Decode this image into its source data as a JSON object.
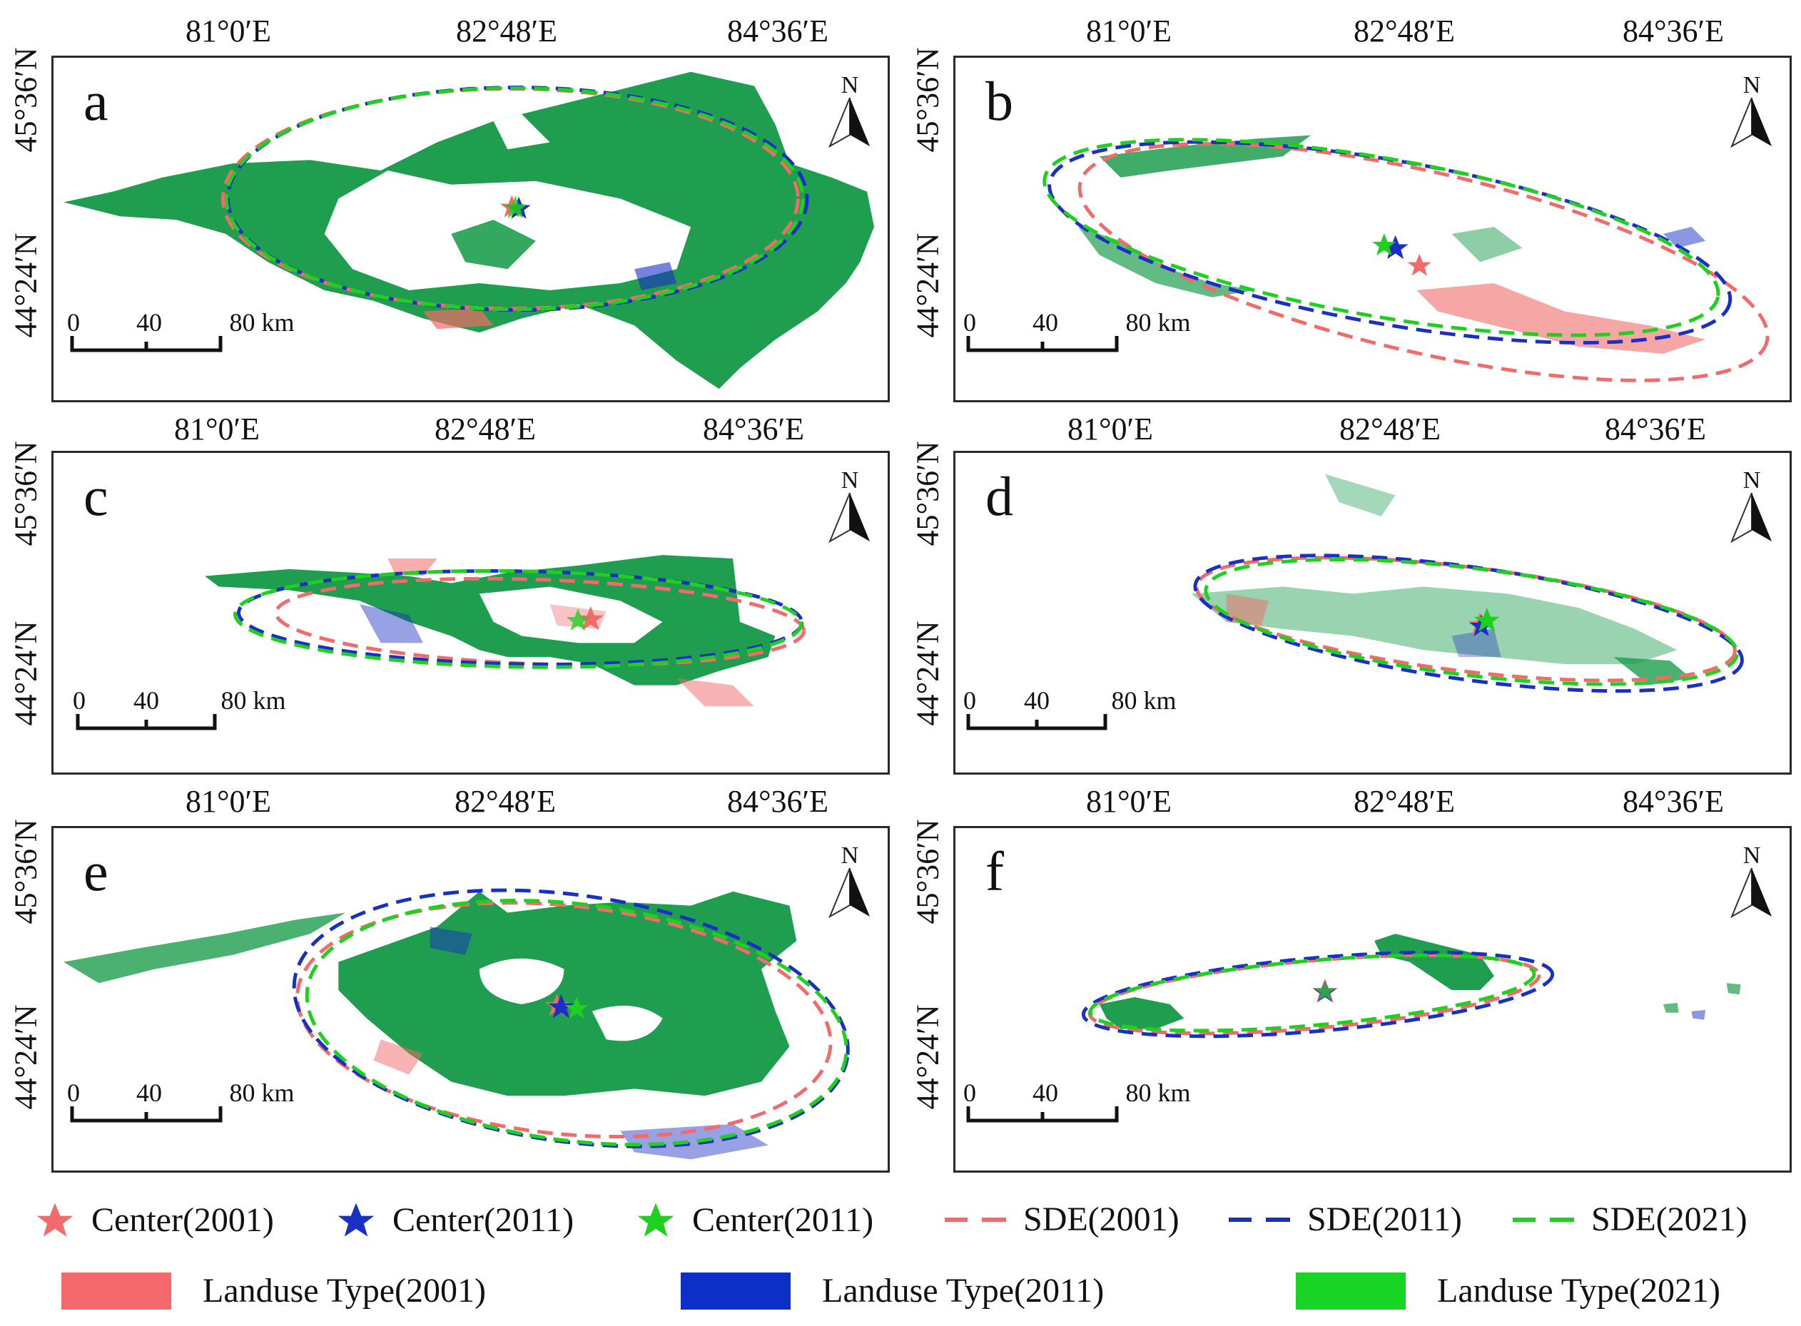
{
  "figure": {
    "lon_labels": [
      "81°0′E",
      "82°48′E",
      "84°36′E"
    ],
    "lat_labels": [
      "45°36′N",
      "44°24′N"
    ],
    "north_label": "N",
    "scale_ticks": [
      "0",
      "40",
      "80 km"
    ],
    "panels": [
      {
        "id": "a",
        "label": "a"
      },
      {
        "id": "b",
        "label": "b"
      },
      {
        "id": "c",
        "label": "c"
      },
      {
        "id": "d",
        "label": "d"
      },
      {
        "id": "e",
        "label": "e"
      },
      {
        "id": "f",
        "label": "f"
      }
    ]
  },
  "legend": {
    "center_2001": "Center(2001)",
    "center_2011_blue": "Center(2011)",
    "center_2011_green": "Center(2011)",
    "sde_2001": "SDE(2001)",
    "sde_2011": "SDE(2011)",
    "sde_2021": "SDE(2021)",
    "landuse_2001": "Landuse Type(2001)",
    "landuse_2011": "Landuse Type(2011)",
    "landuse_2021": "Landuse Type(2021)"
  },
  "colors": {
    "y2001": "#f26a6a",
    "y2011": "#1a2fc4",
    "y2021": "#1fd11f",
    "landuse_green": "#1e9e4e",
    "landuse_2001_swatch": "#f4696b",
    "landuse_2011_swatch": "#0d2fc6",
    "landuse_2021_swatch": "#19d424"
  }
}
